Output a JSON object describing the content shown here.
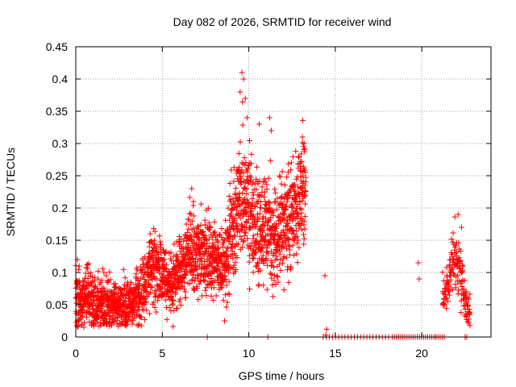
{
  "chart_data": {
    "type": "scatter",
    "title": "Day 082 of 2026, SRMTID for receiver wind",
    "xlabel": "GPS time / hours",
    "ylabel": "SRMTID / TECUs",
    "xlim": [
      0,
      24
    ],
    "ylim": [
      0,
      0.45
    ],
    "xticks": [
      0,
      5,
      10,
      15,
      20
    ],
    "yticks": [
      0,
      0.05,
      0.1,
      0.15,
      0.2,
      0.25,
      0.3,
      0.35,
      0.4,
      0.45
    ],
    "grid": true,
    "marker": "+",
    "colors": {
      "series": "#ff0000",
      "axis": "#000000",
      "grid": "#a0a0a0"
    },
    "series_name": "SRMTID",
    "envelope": [
      [
        0.0,
        0.06,
        0.05
      ],
      [
        0.3,
        0.05,
        0.04
      ],
      [
        0.7,
        0.07,
        0.05
      ],
      [
        1.0,
        0.05,
        0.04
      ],
      [
        1.5,
        0.05,
        0.04
      ],
      [
        2.0,
        0.05,
        0.04
      ],
      [
        2.5,
        0.05,
        0.04
      ],
      [
        3.0,
        0.05,
        0.04
      ],
      [
        3.5,
        0.06,
        0.04
      ],
      [
        4.0,
        0.08,
        0.05
      ],
      [
        4.5,
        0.11,
        0.06
      ],
      [
        5.0,
        0.1,
        0.05
      ],
      [
        5.5,
        0.08,
        0.05
      ],
      [
        6.0,
        0.1,
        0.05
      ],
      [
        6.5,
        0.13,
        0.06
      ],
      [
        7.0,
        0.13,
        0.06
      ],
      [
        7.5,
        0.12,
        0.06
      ],
      [
        8.0,
        0.12,
        0.06
      ],
      [
        8.5,
        0.11,
        0.06
      ],
      [
        9.0,
        0.15,
        0.07
      ],
      [
        9.5,
        0.22,
        0.1
      ],
      [
        10.0,
        0.2,
        0.09
      ],
      [
        10.5,
        0.17,
        0.08
      ],
      [
        11.0,
        0.17,
        0.08
      ],
      [
        11.5,
        0.16,
        0.08
      ],
      [
        12.0,
        0.17,
        0.08
      ],
      [
        12.5,
        0.19,
        0.08
      ],
      [
        13.0,
        0.22,
        0.08
      ],
      [
        13.3,
        0.23,
        0.07
      ]
    ],
    "late_envelope": [
      [
        21.2,
        0.06,
        0.03
      ],
      [
        21.6,
        0.09,
        0.04
      ],
      [
        21.9,
        0.13,
        0.05
      ],
      [
        22.2,
        0.1,
        0.04
      ],
      [
        22.5,
        0.05,
        0.03
      ],
      [
        22.8,
        0.04,
        0.02
      ]
    ],
    "extra_points": [
      [
        0.1,
        0.12
      ],
      [
        0.2,
        0.11
      ],
      [
        4.3,
        0.16
      ],
      [
        6.7,
        0.23
      ],
      [
        6.8,
        0.21
      ],
      [
        9.4,
        0.26
      ],
      [
        9.5,
        0.38
      ],
      [
        9.6,
        0.41
      ],
      [
        9.7,
        0.4
      ],
      [
        9.8,
        0.37
      ],
      [
        9.9,
        0.34
      ],
      [
        10.6,
        0.33
      ],
      [
        11.2,
        0.34
      ],
      [
        11.3,
        0.32
      ],
      [
        12.9,
        0.28
      ],
      [
        13.1,
        0.31
      ],
      [
        13.2,
        0.3
      ],
      [
        8.6,
        0.025
      ],
      [
        7.6,
        0.0
      ],
      [
        14.4,
        0.095
      ],
      [
        14.5,
        0.012
      ],
      [
        14.45,
        0.003
      ],
      [
        19.8,
        0.115
      ],
      [
        19.85,
        0.09
      ],
      [
        20.8,
        0.0
      ],
      [
        22.1,
        0.19
      ],
      [
        22.3,
        0.17
      ],
      [
        11.1,
        0.0
      ]
    ],
    "zero_runs": [
      [
        14.3,
        18.2,
        0.18
      ],
      [
        18.3,
        21.4,
        0.12
      ],
      [
        22.5,
        22.6,
        0.1
      ]
    ]
  }
}
